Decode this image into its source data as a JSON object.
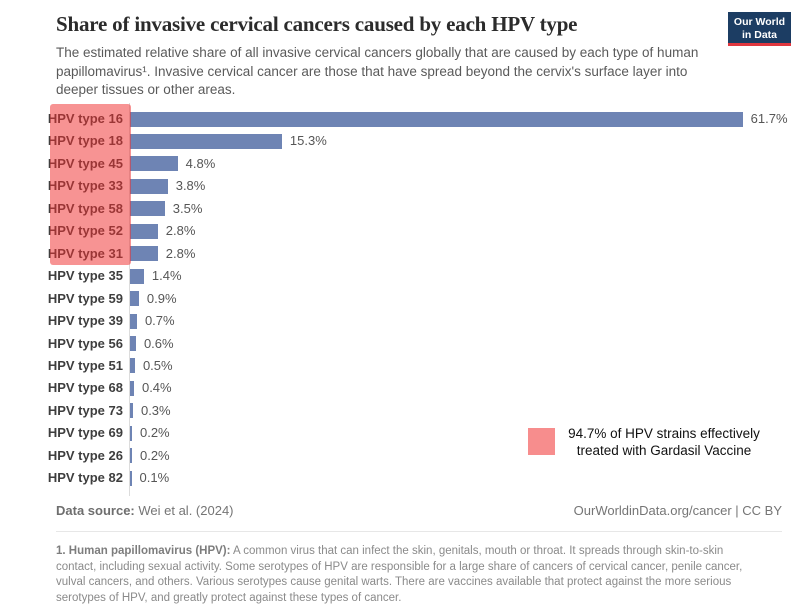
{
  "header": {
    "title": "Share of invasive cervical cancers caused by each HPV type",
    "subtitle": "The estimated relative share of all invasive cervical cancers globally that are caused by each type of human papillomavirus¹. Invasive cervical cancer are those that have spread beyond the cervix's surface layer into deeper tissues or other areas.",
    "logo_line1": "Our World",
    "logo_line2": "in Data"
  },
  "chart_data": {
    "type": "bar",
    "orientation": "horizontal",
    "title": "Share of invasive cervical cancers caused by each HPV type",
    "categories": [
      "HPV type 16",
      "HPV type 18",
      "HPV type 45",
      "HPV type 33",
      "HPV type 58",
      "HPV type 52",
      "HPV type 31",
      "HPV type 35",
      "HPV type 59",
      "HPV type 39",
      "HPV type 56",
      "HPV type 51",
      "HPV type 68",
      "HPV type 73",
      "HPV type 69",
      "HPV type 26",
      "HPV type 82"
    ],
    "values": [
      61.7,
      15.3,
      4.8,
      3.8,
      3.5,
      2.8,
      2.8,
      1.4,
      0.9,
      0.7,
      0.6,
      0.5,
      0.4,
      0.3,
      0.2,
      0.2,
      0.1
    ],
    "value_labels": [
      "61.7%",
      "15.3%",
      "4.8%",
      "3.8%",
      "3.5%",
      "2.8%",
      "2.8%",
      "1.4%",
      "0.9%",
      "0.7%",
      "0.6%",
      "0.5%",
      "0.4%",
      "0.3%",
      "0.2%",
      "0.2%",
      "0.1%"
    ],
    "xlabel": "",
    "ylabel": "",
    "xlim": [
      0,
      65
    ],
    "grid": false,
    "bar_color": "#6e84b4",
    "highlighted_categories": [
      "HPV type 16",
      "HPV type 18",
      "HPV type 45",
      "HPV type 33",
      "HPV type 58",
      "HPV type 52",
      "HPV type 31"
    ],
    "highlight_count": 7,
    "highlight_color": "#f78d8d",
    "annotation": "94.7% of HPV strains effectively treated with Gardasil Vaccine"
  },
  "legend": {
    "line1": "94.7% of HPV strains effectively",
    "line2": "treated with Gardasil Vaccine",
    "swatch_color": "#f78d8d"
  },
  "footer": {
    "data_source_label": "Data source:",
    "data_source_value": " Wei et al. (2024)",
    "link": "OurWorldinData.org/cancer",
    "separator": " | ",
    "license": "CC BY"
  },
  "footnote": {
    "bold": "1. Human papillomavirus (HPV):",
    "text": " A common virus that can infect the skin, genitals, mouth or throat. It spreads through skin-to-skin contact, including sexual activity. Some serotypes of HPV are responsible for a large share of cancers of cervical cancer, penile cancer, vulval cancers, and others. Various serotypes cause genital warts. There are vaccines available that protect against the more serious serotypes of HPV, and greatly protect against these types of cancer."
  },
  "colors": {
    "bar": "#6e84b4",
    "highlight": "#f78d8d",
    "logo_bg": "#1c3d63",
    "logo_stripe": "#e0373f"
  }
}
